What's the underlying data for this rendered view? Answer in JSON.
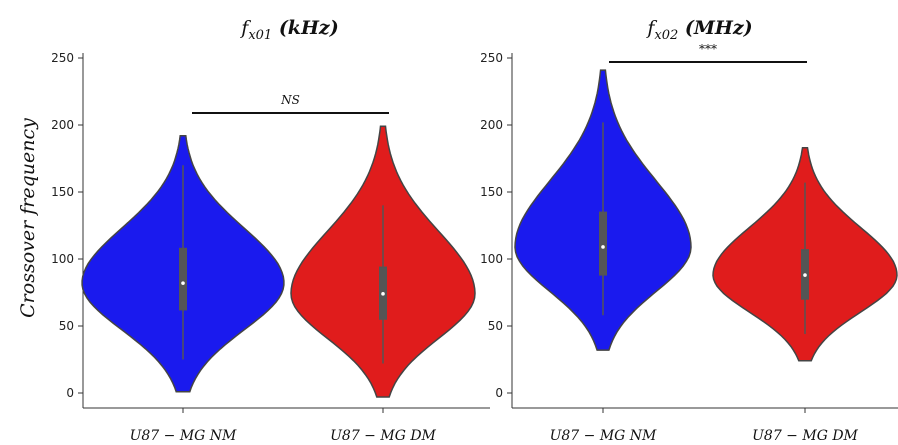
{
  "ylabel": "Crossover frequency",
  "chart_data": [
    {
      "type": "violin",
      "title": {
        "main": "f",
        "sub": "x01",
        "unit": "(kHz)"
      },
      "ylim": [
        -10,
        255
      ],
      "yticks": [
        0,
        50,
        100,
        150,
        200,
        250
      ],
      "categories": [
        "U87 − MG NM",
        "U87 − MG DM"
      ],
      "colors": [
        "#1a1aee",
        "#e01c1c"
      ],
      "series": [
        {
          "category": "U87 − MG NM",
          "min": 1,
          "q1": 62,
          "median": 82,
          "q3": 108,
          "max": 192,
          "whisker_low": 25,
          "whisker_high": 170
        },
        {
          "category": "U87 − MG DM",
          "min": -3,
          "q1": 55,
          "median": 74,
          "q3": 94,
          "max": 199,
          "whisker_low": 22,
          "whisker_high": 140
        }
      ],
      "significance": {
        "label": "NS",
        "y": 209
      }
    },
    {
      "type": "violin",
      "title": {
        "main": "f",
        "sub": "x02",
        "unit": "(MHz)"
      },
      "ylim": [
        -10,
        255
      ],
      "yticks": [
        0,
        50,
        100,
        150,
        200,
        250
      ],
      "categories": [
        "U87 − MG NM",
        "U87 − MG DM"
      ],
      "colors": [
        "#1a1aee",
        "#e01c1c"
      ],
      "series": [
        {
          "category": "U87 − MG NM",
          "min": 32,
          "q1": 88,
          "median": 109,
          "q3": 135,
          "max": 241,
          "whisker_low": 58,
          "whisker_high": 202
        },
        {
          "category": "U87 − MG DM",
          "min": 24,
          "q1": 70,
          "median": 88,
          "q3": 107,
          "max": 183,
          "whisker_low": 44,
          "whisker_high": 157
        }
      ],
      "significance": {
        "label": "***",
        "y": 247
      }
    }
  ]
}
